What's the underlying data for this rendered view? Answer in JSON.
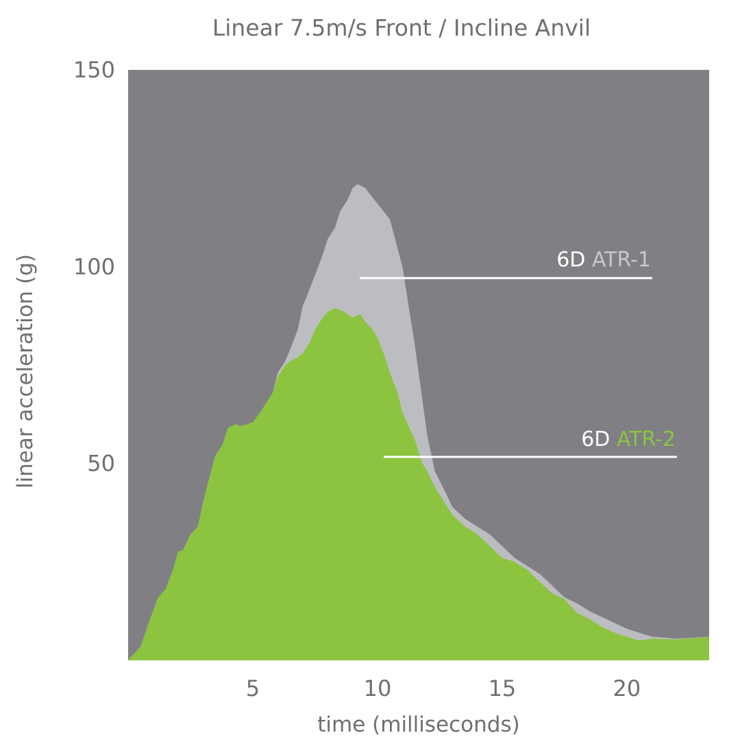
{
  "chart_data": {
    "type": "area",
    "title": "Linear 7.5m/s Front / Incline Anvil",
    "xlabel": "time (milliseconds)",
    "ylabel": "linear acceleration (g)",
    "xlim": [
      0,
      23.3
    ],
    "ylim": [
      0,
      150
    ],
    "x_ticks": [
      5,
      10,
      15,
      20
    ],
    "y_ticks": [
      50,
      100,
      150
    ],
    "grid": false,
    "legend": "inline labels with pointer lines",
    "background_color": "#808084",
    "series": [
      {
        "name": "6D ATR-1",
        "label_prefix": "6D",
        "label_suffix": "ATR-1",
        "color": "#bcbdc0",
        "x": [
          0,
          0.5,
          0.8,
          1.2,
          1.5,
          1.8,
          2.0,
          2.2,
          2.5,
          2.8,
          3.0,
          3.2,
          3.5,
          3.8,
          4.0,
          4.3,
          4.5,
          4.8,
          5.0,
          5.3,
          5.5,
          5.8,
          6.0,
          6.3,
          6.5,
          6.8,
          7.0,
          7.2,
          7.5,
          7.8,
          8.0,
          8.3,
          8.5,
          8.8,
          9.0,
          9.2,
          9.5,
          10.0,
          10.5,
          11.0,
          11.5,
          12.0,
          12.3,
          12.7,
          13.0,
          13.5,
          14.0,
          14.5,
          15.0,
          15.5,
          16.0,
          16.5,
          17.0,
          17.5,
          18.0,
          18.5,
          19.0,
          19.5,
          20.0,
          20.5,
          21.0,
          22.0,
          23.3
        ],
        "values": [
          0,
          3.5,
          9,
          16,
          18,
          23,
          27.5,
          28,
          32,
          34,
          40,
          45,
          52,
          55,
          59,
          60,
          59.5,
          60,
          60.5,
          63,
          65,
          68,
          73,
          76,
          79,
          84,
          90,
          93,
          98,
          103,
          107,
          110,
          114,
          117,
          120,
          121,
          120,
          116,
          112,
          100,
          80,
          57,
          48,
          43,
          39,
          36,
          34,
          32,
          29,
          26,
          24,
          22,
          19,
          16,
          14.5,
          12.5,
          11,
          9.5,
          8,
          7,
          6,
          5.5,
          6
        ]
      },
      {
        "name": "6D ATR-2",
        "label_prefix": "6D",
        "label_suffix": "ATR-2",
        "color": "#8cc43f",
        "x": [
          0,
          0.5,
          0.8,
          1.2,
          1.5,
          1.8,
          2.0,
          2.2,
          2.5,
          2.8,
          3.0,
          3.2,
          3.5,
          3.8,
          4.0,
          4.3,
          4.5,
          4.8,
          5.0,
          5.3,
          5.5,
          5.8,
          6.0,
          6.3,
          6.5,
          6.8,
          7.0,
          7.3,
          7.5,
          7.8,
          8.0,
          8.3,
          8.5,
          8.8,
          9.0,
          9.3,
          9.5,
          9.8,
          10.0,
          10.3,
          10.5,
          10.8,
          11.0,
          11.5,
          11.8,
          12.0,
          12.3,
          12.7,
          13.0,
          13.5,
          14.0,
          14.5,
          15.0,
          15.5,
          16.0,
          16.5,
          17.0,
          17.5,
          18.0,
          18.5,
          19.0,
          19.5,
          20.0,
          20.5,
          21.0,
          22.0,
          23.3
        ],
        "values": [
          0,
          3.5,
          9,
          16,
          18,
          23,
          27.5,
          28,
          32,
          34,
          40,
          45,
          52,
          55,
          59,
          60,
          59.5,
          60,
          60.5,
          63,
          65,
          68,
          72,
          75,
          76,
          77,
          78,
          81,
          84,
          87,
          88.5,
          89.5,
          89,
          88,
          87,
          88,
          86,
          84,
          82,
          77,
          73,
          68,
          63,
          56,
          50,
          48,
          44,
          40,
          37,
          34,
          32,
          29,
          26,
          25,
          23,
          20,
          17,
          15.5,
          12,
          10.5,
          8.5,
          7,
          6,
          5,
          5.5,
          5.3,
          6
        ]
      }
    ]
  }
}
